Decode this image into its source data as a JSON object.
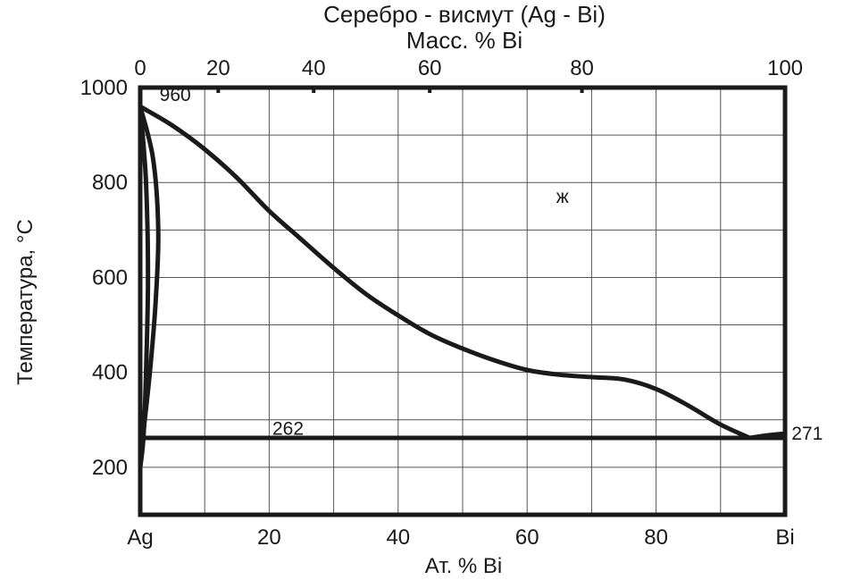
{
  "chart_data": {
    "type": "line",
    "title": "Серебро - висмут (Ag - Bi)",
    "top_axis_label": "Масс. % Bi",
    "xlabel": "Ат. % Bi",
    "ylabel": "Температура, °C",
    "xlim": [
      0,
      100
    ],
    "ylim": [
      100,
      1000
    ],
    "x_ticks": [
      {
        "value": 0,
        "label": "Ag"
      },
      {
        "value": 20,
        "label": "20"
      },
      {
        "value": 40,
        "label": "40"
      },
      {
        "value": 60,
        "label": "60"
      },
      {
        "value": 80,
        "label": "80"
      },
      {
        "value": 100,
        "label": "Bi"
      }
    ],
    "top_ticks": [
      {
        "at_value": 0,
        "label": "0"
      },
      {
        "at_value": 12.1,
        "label": "20"
      },
      {
        "at_value": 26.9,
        "label": "40"
      },
      {
        "at_value": 44.9,
        "label": "60"
      },
      {
        "at_value": 68.5,
        "label": "80"
      },
      {
        "at_value": 100,
        "label": "100"
      }
    ],
    "y_ticks": [
      {
        "value": 1000,
        "label": "1000"
      },
      {
        "value": 800,
        "label": "800"
      },
      {
        "value": 600,
        "label": "600"
      },
      {
        "value": 400,
        "label": "400"
      },
      {
        "value": 200,
        "label": "200"
      }
    ],
    "grid": {
      "x_step": 10,
      "y_step": 100
    },
    "series": [
      {
        "id": "liquidus",
        "x": [
          0,
          5,
          10,
          15,
          20,
          25,
          30,
          35,
          40,
          45,
          50,
          55,
          60,
          65,
          70,
          75,
          80,
          85,
          90,
          94.5
        ],
        "y": [
          960,
          920,
          870,
          810,
          740,
          680,
          620,
          565,
          520,
          480,
          450,
          425,
          405,
          395,
          390,
          385,
          365,
          330,
          290,
          262
        ]
      },
      {
        "id": "liquidus-bi",
        "x": [
          94.5,
          97,
          100
        ],
        "y": [
          262,
          267,
          271
        ]
      },
      {
        "id": "solidus-ag",
        "x": [
          0,
          0.9,
          1.2,
          0.9,
          0.5,
          0
        ],
        "y": [
          960,
          800,
          600,
          400,
          262,
          200
        ]
      },
      {
        "id": "solvus-ag",
        "x": [
          0,
          2,
          2.8,
          2.4,
          1.5,
          0.4,
          0
        ],
        "y": [
          960,
          850,
          700,
          550,
          400,
          262,
          200
        ]
      },
      {
        "id": "eutectic",
        "x": [
          0.4,
          100
        ],
        "y": [
          262,
          262
        ]
      }
    ],
    "annotations": [
      {
        "text": "960",
        "x": 3,
        "y": 985
      },
      {
        "text": "262",
        "x": 20.5,
        "y": 282
      },
      {
        "text": "271",
        "x": 101,
        "y": 271
      },
      {
        "text": "ж",
        "x": 64.5,
        "y": 770
      }
    ]
  }
}
